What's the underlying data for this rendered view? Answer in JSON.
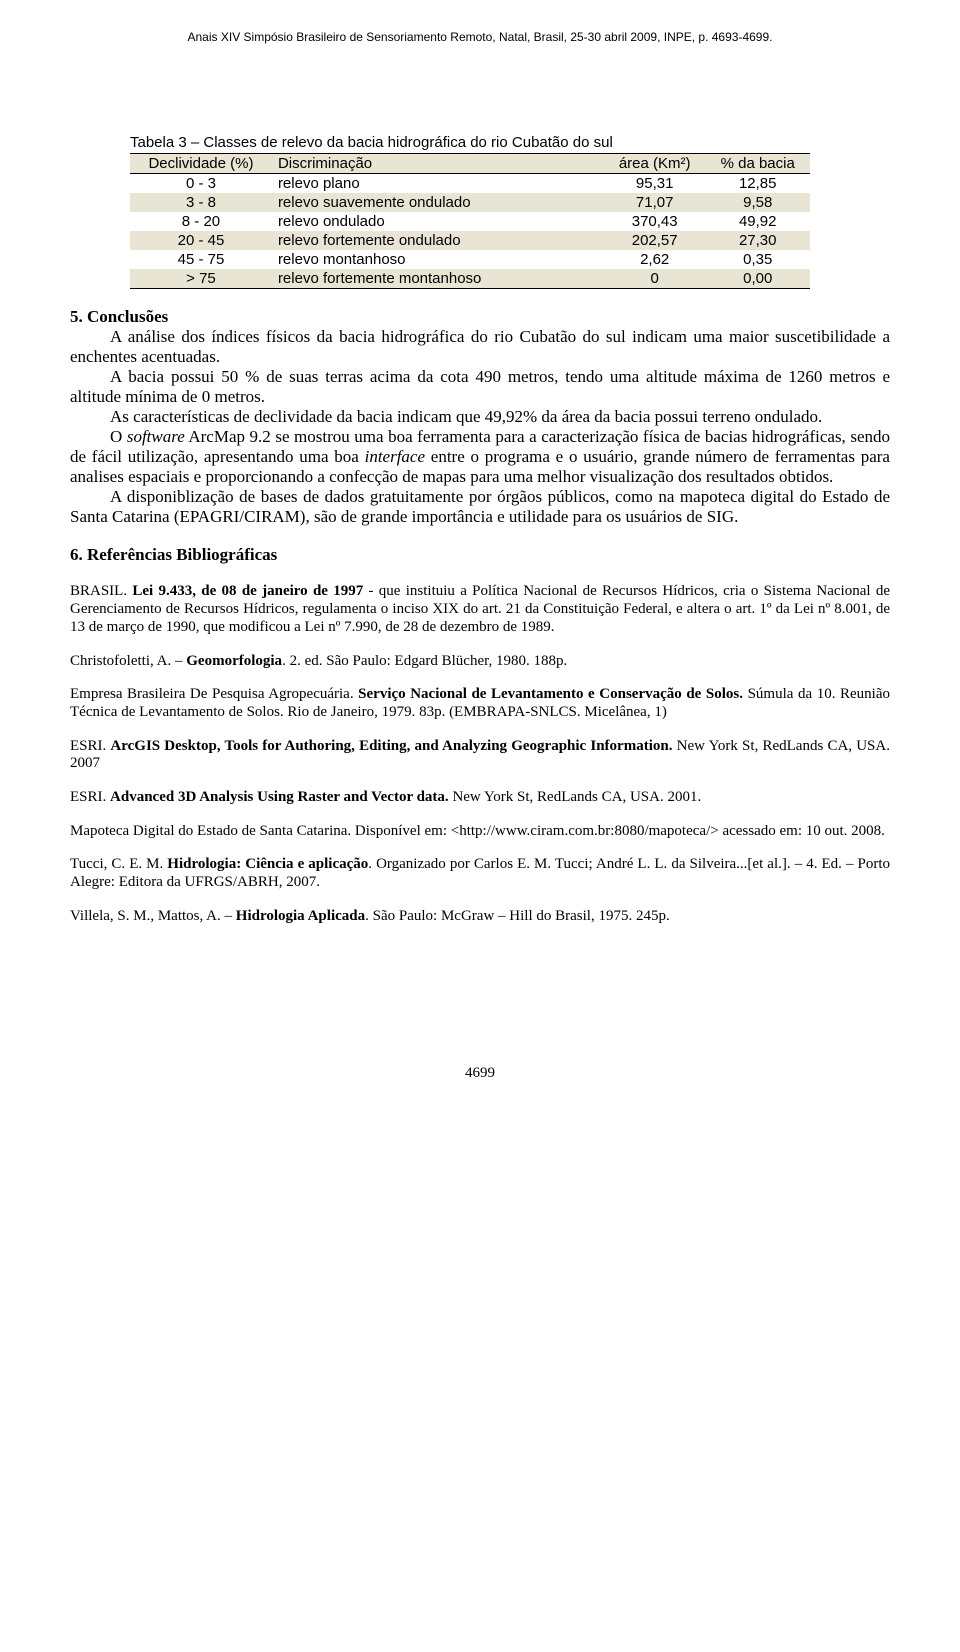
{
  "running_head": "Anais XIV Simpósio Brasileiro de Sensoriamento Remoto, Natal, Brasil, 25-30 abril 2009, INPE, p. 4693-4699.",
  "table": {
    "type": "table",
    "caption": "Tabela 3 – Classes de relevo da bacia hidrográfica do rio Cubatão do sul",
    "header_bg": "#e9e5d4",
    "row_shaded_bg": "#e9e5d4",
    "border_color": "#000000",
    "columns": [
      "Declividade (%)",
      "Discriminação",
      "área (Km²)",
      "% da bacia"
    ],
    "rows": [
      {
        "c0": "0 - 3",
        "c1": "relevo plano",
        "c2": "95,31",
        "c3": "12,85",
        "shaded": false
      },
      {
        "c0": "3 - 8",
        "c1": "relevo suavemente ondulado",
        "c2": "71,07",
        "c3": "9,58",
        "shaded": true
      },
      {
        "c0": "8 - 20",
        "c1": "relevo ondulado",
        "c2": "370,43",
        "c3": "49,92",
        "shaded": false
      },
      {
        "c0": "20 - 45",
        "c1": "relevo fortemente ondulado",
        "c2": "202,57",
        "c3": "27,30",
        "shaded": true
      },
      {
        "c0": "45 - 75",
        "c1": "relevo montanhoso",
        "c2": "2,62",
        "c3": "0,35",
        "shaded": false
      },
      {
        "c0": "> 75",
        "c1": "relevo fortemente montanhoso",
        "c2": "0",
        "c3": "0,00",
        "shaded": true
      }
    ]
  },
  "sec5": {
    "head": "5. Conclusões",
    "p1": "A análise dos índices físicos da bacia hidrográfica do rio Cubatão do sul indicam uma maior suscetibilidade  a enchentes acentuadas.",
    "p2": "A bacia possui 50 % de suas terras acima da cota 490 metros, tendo uma altitude máxima de 1260 metros e altitude mínima de 0 metros.",
    "p3": "As características de declividade da bacia indicam que 49,92% da área da bacia possui terreno ondulado.",
    "p4a": "O ",
    "p4s": "software",
    "p4b": " ArcMap 9.2 se mostrou uma boa ferramenta para a caracterização física de bacias hidrográficas, sendo de fácil utilização, apresentando uma boa ",
    "p4i": "interface",
    "p4c": " entre o programa e o usuário, grande número de ferramentas para analises espaciais e proporcionando a confecção de mapas para uma melhor visualização dos resultados obtidos.",
    "p5": "A disponiblização de bases de dados gratuitamente por órgãos públicos, como na mapoteca digital do Estado de Santa Catarina (EPAGRI/CIRAM), são de grande importância e utilidade para os usuários de SIG."
  },
  "sec6": {
    "head": "6. Referências Bibliográficas",
    "r1a": "BRASIL. ",
    "r1b": "Lei 9.433, de 08 de janeiro de 1997 ",
    "r1c": " -  que instituiu a Política Nacional de Recursos Hídricos, cria o Sistema Nacional de Gerenciamento de Recursos Hídricos, regulamenta o inciso XIX do art. 21 da Constituição Federal, e altera o art. 1º da Lei nº 8.001, de 13 de março de 1990, que modificou a Lei nº 7.990, de 28 de dezembro de 1989.",
    "r2a": "Christofoletti, A. – ",
    "r2b": "Geomorfologia",
    "r2c": ". 2. ed.  São Paulo: Edgard Blücher, 1980.  188p.",
    "r3a": "Empresa Brasileira De Pesquisa Agropecuária. ",
    "r3b": "Serviço Nacional de Levantamento e Conservação de Solos.",
    "r3c": " Súmula da 10. Reunião Técnica de Levantamento de Solos. Rio de Janeiro, 1979. 83p. (EMBRAPA-SNLCS. Micelânea, 1)",
    "r4a": "ESRI. ",
    "r4b": "ArcGIS Desktop, Tools for Authoring, Editing, and Analyzing Geographic Information.",
    "r4c": " New York St, RedLands CA, USA. 2007",
    "r5a": "ESRI. ",
    "r5b": "Advanced 3D Analysis Using Raster and Vector data.",
    "r5c": " New York St, RedLands CA, USA. 2001.",
    "r6": "Mapoteca Digital do Estado de Santa Catarina. Disponível em: <http://www.ciram.com.br:8080/mapoteca/>  acessado em: 10 out.  2008.",
    "r7a": "Tucci, C. E. M. ",
    "r7b": "Hidrologia: Ciência e aplicação",
    "r7c": ". Organizado por Carlos E. M. Tucci; André L. L. da Silveira...[et al.]. – 4. Ed. – Porto Alegre: Editora da UFRGS/ABRH, 2007.",
    "r8a": "Villela, S. M., Mattos, A. – ",
    "r8b": "Hidrologia Aplicada",
    "r8c": ". São Paulo: McGraw – Hill do Brasil, 1975. 245p."
  },
  "pagenum": "4699"
}
